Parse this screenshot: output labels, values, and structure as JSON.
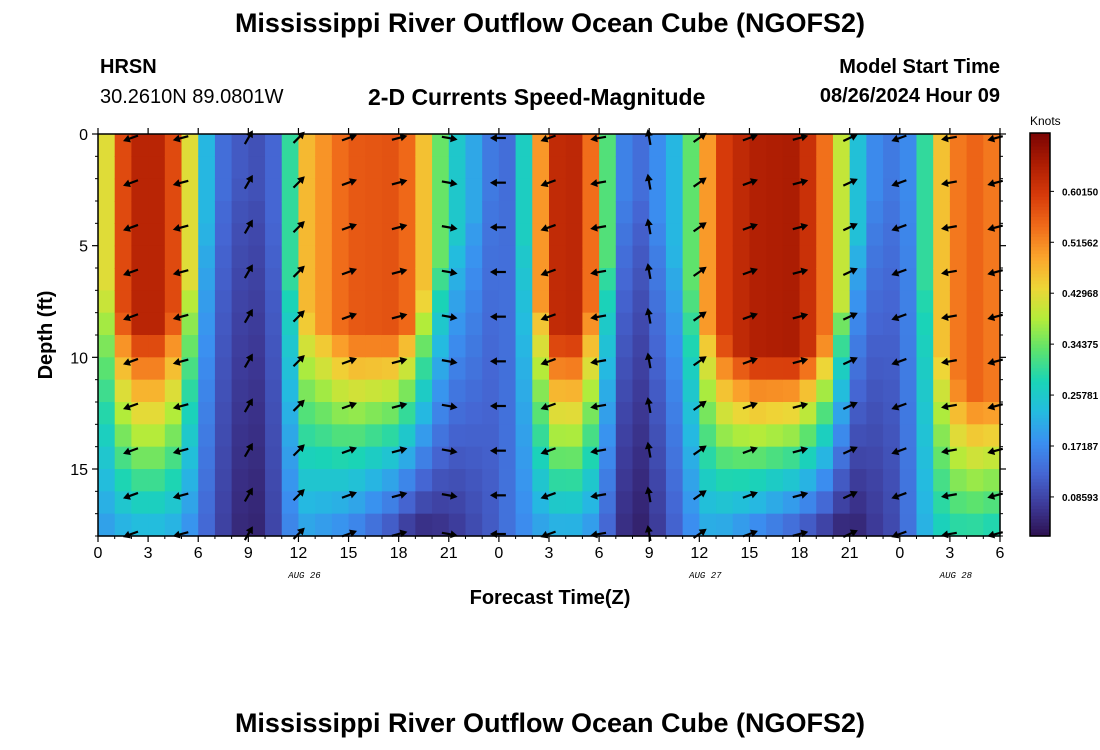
{
  "header": {
    "title": "Mississippi River Outflow Ocean Cube (NGOFS2)",
    "station_name": "HRSN",
    "station_coords": "30.2610N  89.0801W",
    "subtitle": "2-D Currents Speed-Magnitude",
    "start_label": "Model Start Time",
    "start_value": "08/26/2024 Hour 09"
  },
  "footer": {
    "title": "Mississippi River Outflow Ocean Cube (NGOFS2)"
  },
  "chart_data": {
    "type": "heatmap",
    "title": "2-D Currents Speed-Magnitude",
    "xlabel": "Forecast Time(Z)",
    "ylabel": "Depth (ft)",
    "x_tick_labels": [
      "0",
      "3",
      "6",
      "9",
      "12",
      "15",
      "18",
      "21",
      "0",
      "3",
      "6",
      "9",
      "12",
      "15",
      "18",
      "21",
      "0",
      "3",
      "6"
    ],
    "x_range_hours": [
      0,
      54
    ],
    "day_labels": [
      {
        "text": "AUG 26",
        "hour": 12
      },
      {
        "text": "AUG 27",
        "hour": 36
      },
      {
        "text": "AUG 28",
        "hour": 51
      }
    ],
    "y_ticks": [
      0,
      5,
      10,
      15
    ],
    "ylim": [
      0,
      18
    ],
    "y_inverted": true,
    "colorbar": {
      "unit": "Knots",
      "tick_labels": [
        "0.60150",
        "0.51562",
        "0.42968",
        "0.34375",
        "0.25781",
        "0.17187",
        "0.08593"
      ],
      "tick_values": [
        0.6015,
        0.51562,
        0.42968,
        0.34375,
        0.25781,
        0.17187,
        0.08593
      ],
      "range": [
        0.02,
        0.7
      ],
      "colors": [
        "#2d1150",
        "#3d3a98",
        "#4566d3",
        "#3b8ff0",
        "#24bbe0",
        "#1ad4b6",
        "#5de36d",
        "#b3ec3a",
        "#eed637",
        "#fba42c",
        "#f06a19",
        "#d63a0a",
        "#ad1d03",
        "#7a0403"
      ]
    },
    "speed_profile_by_hour": {
      "hours": [
        0,
        1,
        3,
        5,
        6,
        7,
        8,
        9,
        10,
        11,
        12,
        15,
        18,
        19,
        21,
        23,
        24,
        25,
        27,
        29,
        30,
        31,
        32,
        33,
        35,
        36,
        37,
        39,
        42,
        44,
        45,
        46,
        48,
        49,
        50,
        51,
        53,
        54
      ],
      "surface": [
        0.3,
        0.55,
        0.66,
        0.55,
        0.3,
        0.15,
        0.12,
        0.1,
        0.1,
        0.15,
        0.45,
        0.56,
        0.57,
        0.52,
        0.28,
        0.18,
        0.12,
        0.15,
        0.62,
        0.63,
        0.45,
        0.2,
        0.12,
        0.15,
        0.25,
        0.42,
        0.58,
        0.64,
        0.65,
        0.5,
        0.3,
        0.18,
        0.14,
        0.2,
        0.4,
        0.52,
        0.56,
        0.5
      ],
      "bottom": [
        0.18,
        0.2,
        0.22,
        0.2,
        0.15,
        0.1,
        0.06,
        0.04,
        0.05,
        0.12,
        0.2,
        0.16,
        0.08,
        0.04,
        0.06,
        0.1,
        0.12,
        0.16,
        0.2,
        0.2,
        0.16,
        0.08,
        0.03,
        0.05,
        0.14,
        0.2,
        0.2,
        0.16,
        0.1,
        0.05,
        0.03,
        0.06,
        0.1,
        0.18,
        0.25,
        0.28,
        0.28,
        0.26
      ],
      "core_depth_ft": [
        6,
        8,
        9,
        8,
        5,
        3,
        2,
        2,
        3,
        5,
        8,
        9,
        9,
        8,
        5,
        3,
        2,
        3,
        9,
        9,
        7,
        4,
        2,
        3,
        6,
        8,
        9,
        10,
        10,
        9,
        6,
        3,
        2,
        4,
        9,
        11,
        12,
        12
      ]
    },
    "vector_hours": [
      2,
      5,
      9,
      12,
      15,
      18,
      21,
      24,
      27,
      30,
      33,
      36,
      39,
      42,
      45,
      48,
      51,
      54
    ],
    "vector_depths_ft": [
      0,
      2,
      4,
      6,
      8,
      10,
      12,
      14,
      16,
      18
    ],
    "vector_angles_deg_by_hour": [
      200,
      195,
      60,
      45,
      20,
      15,
      -10,
      180,
      200,
      190,
      100,
      35,
      20,
      15,
      25,
      200,
      190,
      195
    ]
  }
}
